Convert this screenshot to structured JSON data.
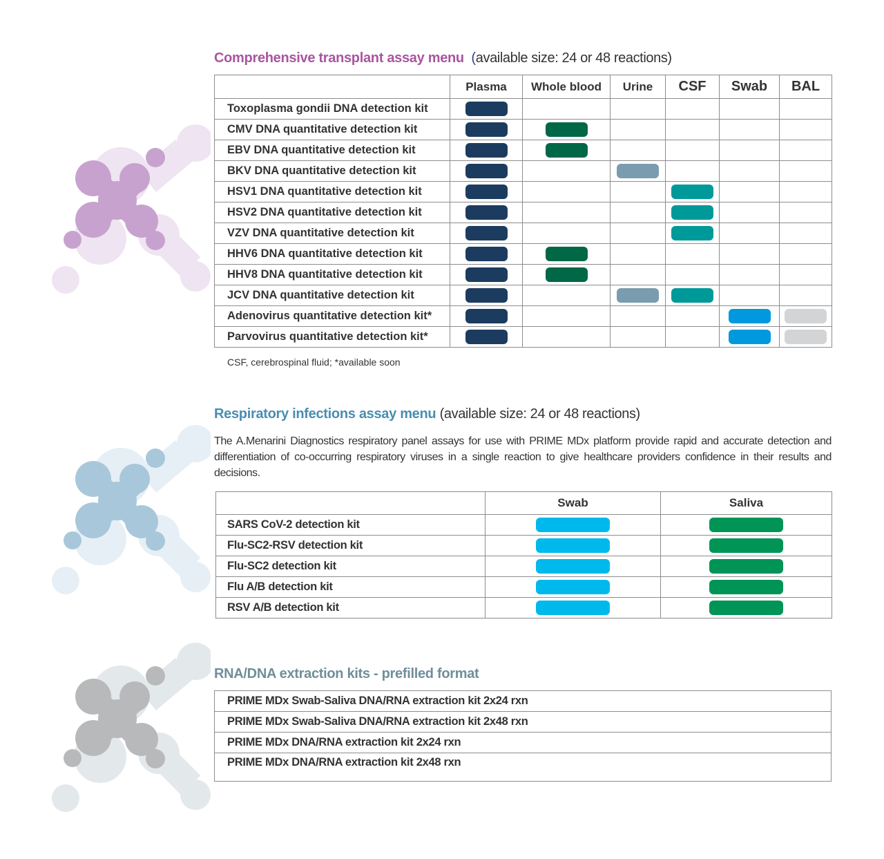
{
  "colors": {
    "plasma": "#1b3c5e",
    "whole_blood": "#006747",
    "urine": "#7a9caf",
    "csf": "#00999a",
    "swab": "#0099dd",
    "bal": "#d3d4d6",
    "resp_swab": "#00b9ec",
    "resp_saliva": "#009456",
    "title_transplant": "#a9559f",
    "title_resp": "#4a8db0",
    "title_extract": "#6f8e99"
  },
  "transplant": {
    "title": "Comprehensive transplant assay menu",
    "paren_open": "(",
    "subtitle": "available size: 24 or 48 reactions)",
    "columns": [
      "Plasma",
      "Whole blood",
      "Urine",
      "CSF",
      "Swab",
      "BAL"
    ],
    "rows": [
      {
        "label": "Toxoplasma gondii DNA detection kit",
        "samples": [
          1,
          0,
          0,
          0,
          0,
          0
        ]
      },
      {
        "label": "CMV DNA quantitative detection kit",
        "samples": [
          1,
          1,
          0,
          0,
          0,
          0
        ]
      },
      {
        "label": "EBV DNA quantitative detection kit",
        "samples": [
          1,
          1,
          0,
          0,
          0,
          0
        ]
      },
      {
        "label": "BKV DNA quantitative detection kit",
        "samples": [
          1,
          0,
          1,
          0,
          0,
          0
        ]
      },
      {
        "label": "HSV1 DNA quantitative detection kit",
        "samples": [
          1,
          0,
          0,
          1,
          0,
          0
        ]
      },
      {
        "label": "HSV2 DNA quantitative detection kit",
        "samples": [
          1,
          0,
          0,
          1,
          0,
          0
        ]
      },
      {
        "label": "VZV DNA quantitative detection kit",
        "samples": [
          1,
          0,
          0,
          1,
          0,
          0
        ]
      },
      {
        "label": "HHV6 DNA quantitative detection kit",
        "samples": [
          1,
          1,
          0,
          0,
          0,
          0
        ]
      },
      {
        "label": "HHV8 DNA quantitative detection kit",
        "samples": [
          1,
          1,
          0,
          0,
          0,
          0
        ]
      },
      {
        "label": "JCV DNA quantitative detection kit",
        "samples": [
          1,
          0,
          1,
          1,
          0,
          0
        ]
      },
      {
        "label": "Adenovirus quantitative detection kit*",
        "samples": [
          1,
          0,
          0,
          0,
          1,
          1
        ]
      },
      {
        "label": "Parvovirus quantitative detection kit*",
        "samples": [
          1,
          0,
          0,
          0,
          1,
          1
        ]
      }
    ],
    "footnote": "CSF, cerebrospinal fluid; *available soon"
  },
  "respiratory": {
    "title": "Respiratory infections assay menu",
    "subtitle": "(available size: 24 or 48 reactions)",
    "description": "The A.Menarini Diagnostics respiratory panel assays for use with PRIME MDx platform provide rapid and accurate detection and differentiation of co-occurring respiratory viruses in a single reaction to give healthcare providers confidence in their results and decisions.",
    "columns": [
      "Swab",
      "Saliva"
    ],
    "rows": [
      {
        "label": "SARS CoV-2 detection kit",
        "samples": [
          1,
          1
        ]
      },
      {
        "label": "Flu-SC2-RSV detection kit",
        "samples": [
          1,
          1
        ]
      },
      {
        "label": "Flu-SC2 detection kit",
        "samples": [
          1,
          1
        ]
      },
      {
        "label": "Flu A/B detection kit",
        "samples": [
          1,
          1
        ]
      },
      {
        "label": "RSV A/B detection kit",
        "samples": [
          1,
          1
        ]
      }
    ]
  },
  "extraction": {
    "title": "RNA/DNA extraction kits - prefilled format",
    "rows": [
      "PRIME MDx Swab-Saliva DNA/RNA extraction kit 2x24 rxn",
      "PRIME MDx Swab-Saliva DNA/RNA extraction kit 2x48 rxn",
      "PRIME MDx DNA/RNA extraction kit 2x24 rxn",
      "PRIME MDx DNA/RNA extraction kit 2x48 rxn"
    ]
  },
  "decorations": [
    {
      "icon": "molecule-x-icon",
      "color": "#c8a2cf",
      "light": "#efe4f1"
    },
    {
      "icon": "molecule-x-icon",
      "color": "#a9c7db",
      "light": "#e6eff5"
    },
    {
      "icon": "molecule-x-icon",
      "color": "#b8b9ba",
      "light": "#e3e8eb"
    }
  ]
}
